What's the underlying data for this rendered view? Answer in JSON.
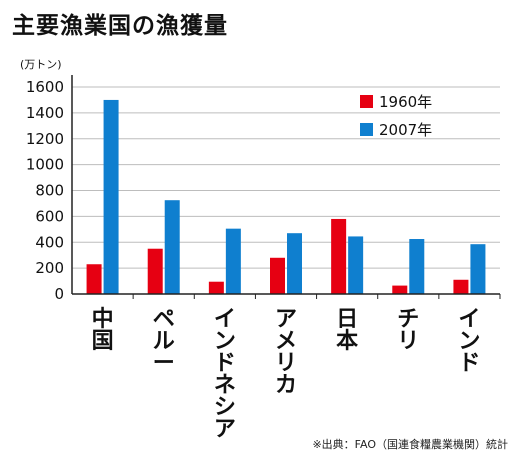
{
  "title": "主要漁業国の漁獲量",
  "source": "※出典：FAO（国連食糧農業機関）統計",
  "colors": {
    "s1960": "#e60012",
    "s2007": "#0f7fcf",
    "grid": "#bdbdbd",
    "axis": "#222222"
  },
  "chart_data": {
    "type": "bar",
    "ylabel": "(万トン)",
    "ylim": [
      0,
      1600
    ],
    "yticks": [
      0,
      200,
      400,
      600,
      800,
      1000,
      1200,
      1400,
      1600
    ],
    "grid": true,
    "legend_position": "top-right",
    "categories": [
      "中国",
      "ペルー",
      "インドネシア",
      "アメリカ",
      "日本",
      "チリ",
      "インド"
    ],
    "series": [
      {
        "name": "1960年",
        "values": [
          230,
          350,
          95,
          280,
          580,
          65,
          110
        ]
      },
      {
        "name": "2007年",
        "values": [
          1500,
          725,
          505,
          470,
          445,
          425,
          385
        ]
      }
    ]
  }
}
